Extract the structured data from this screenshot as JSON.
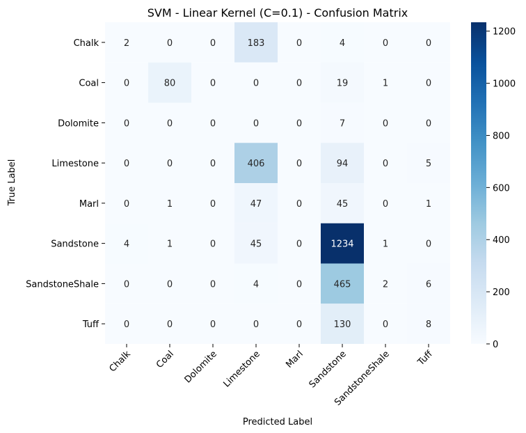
{
  "chart_data": {
    "type": "heatmap",
    "title": "SVM - Linear Kernel (C=0.1) - Confusion Matrix",
    "xlabel": "Predicted Label",
    "ylabel": "True Label",
    "x_categories": [
      "Chalk",
      "Coal",
      "Dolomite",
      "Limestone",
      "Marl",
      "Sandstone",
      "SandstoneShale",
      "Tuff"
    ],
    "y_categories": [
      "Chalk",
      "Coal",
      "Dolomite",
      "Limestone",
      "Marl",
      "Sandstone",
      "SandstoneShale",
      "Tuff"
    ],
    "matrix": [
      [
        2,
        0,
        0,
        183,
        0,
        4,
        0,
        0
      ],
      [
        0,
        80,
        0,
        0,
        0,
        19,
        1,
        0
      ],
      [
        0,
        0,
        0,
        0,
        0,
        7,
        0,
        0
      ],
      [
        0,
        0,
        0,
        406,
        0,
        94,
        0,
        5
      ],
      [
        0,
        1,
        0,
        47,
        0,
        45,
        0,
        1
      ],
      [
        4,
        1,
        0,
        45,
        0,
        1234,
        1,
        0
      ],
      [
        0,
        0,
        0,
        4,
        0,
        465,
        2,
        6
      ],
      [
        0,
        0,
        0,
        0,
        0,
        130,
        0,
        8
      ]
    ],
    "colorbar": {
      "min": 0,
      "max": 1234,
      "ticks": [
        0,
        200,
        400,
        600,
        800,
        1000,
        1200
      ],
      "colormap": "Blues"
    }
  }
}
